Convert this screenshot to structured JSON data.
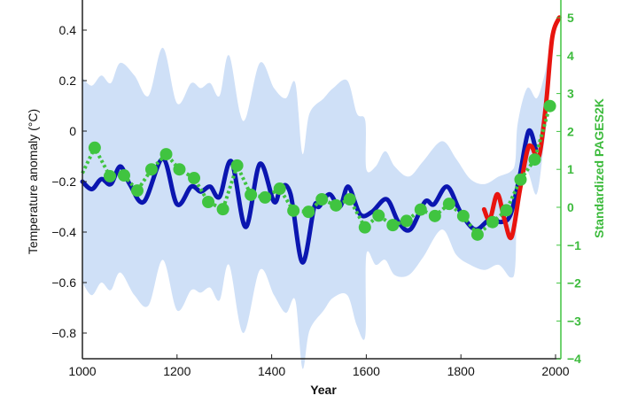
{
  "chart_data": {
    "type": "line",
    "xlabel": "Year",
    "ylabel": "Temperature anomaly (°C)",
    "y2label": "Standardized PAGES2K",
    "xlim": [
      990,
      2010
    ],
    "ylim": [
      -0.9,
      0.52
    ],
    "y2lim": [
      -4,
      5
    ],
    "xticks": [
      "1000",
      "1200",
      "1400",
      "1600",
      "1800",
      "2000"
    ],
    "yticks": [
      "0.4",
      "0.2",
      "0",
      "-0.2",
      "-0.4",
      "-0.6",
      "-0.8"
    ],
    "y2ticks": [
      "5",
      "4",
      "3",
      "2",
      "1",
      "0",
      "-1",
      "-2",
      "-3",
      "-4"
    ],
    "grid": false,
    "colors": {
      "band": "#cfe0f7",
      "blue": "#0b16b0",
      "red": "#e8140f",
      "green": "#40c440",
      "right_axis": "#40c440"
    },
    "series": [
      {
        "type": "band",
        "axis": "left",
        "color": "#cfe0f7",
        "x": [
          1000,
          1020,
          1040,
          1060,
          1080,
          1110,
          1140,
          1170,
          1200,
          1230,
          1250,
          1270,
          1290,
          1310,
          1340,
          1375,
          1405,
          1430,
          1450,
          1465,
          1480,
          1510,
          1530,
          1560,
          1580,
          1598,
          1600,
          1620,
          1640,
          1660,
          1690,
          1720,
          1760,
          1790,
          1820,
          1850,
          1880,
          1905,
          1915,
          1920,
          1940,
          1960,
          1975,
          1985
        ],
        "upper": [
          0.21,
          0.18,
          0.22,
          0.19,
          0.27,
          0.22,
          0.14,
          0.33,
          0.11,
          0.19,
          0.17,
          0.19,
          0.14,
          0.3,
          0.04,
          0.27,
          0.17,
          0.13,
          0.19,
          -0.09,
          0.07,
          0.13,
          0.17,
          0.2,
          0.07,
          0.04,
          -0.15,
          -0.14,
          -0.08,
          -0.14,
          -0.18,
          -0.12,
          -0.04,
          -0.11,
          -0.19,
          -0.21,
          -0.18,
          -0.16,
          -0.12,
          0.03,
          0.17,
          0.13,
          0.21,
          0.3
        ],
        "lower": [
          -0.6,
          -0.65,
          -0.6,
          -0.63,
          -0.56,
          -0.65,
          -0.69,
          -0.51,
          -0.71,
          -0.63,
          -0.64,
          -0.62,
          -0.67,
          -0.53,
          -0.8,
          -0.55,
          -0.65,
          -0.72,
          -0.67,
          -0.94,
          -0.79,
          -0.71,
          -0.66,
          -0.65,
          -0.77,
          -0.81,
          -0.49,
          -0.53,
          -0.51,
          -0.57,
          -0.57,
          -0.5,
          -0.39,
          -0.49,
          -0.53,
          -0.55,
          -0.53,
          -0.58,
          -0.53,
          -0.24,
          -0.16,
          -0.25,
          -0.06,
          0.1
        ]
      },
      {
        "type": "line",
        "axis": "left",
        "color": "#0b16b0",
        "x": [
          1000,
          1020,
          1040,
          1060,
          1080,
          1100,
          1130,
          1170,
          1200,
          1230,
          1250,
          1270,
          1290,
          1315,
          1345,
          1375,
          1405,
          1420,
          1440,
          1465,
          1490,
          1500,
          1522,
          1544,
          1562,
          1587,
          1612,
          1643,
          1668,
          1693,
          1724,
          1743,
          1771,
          1799,
          1830,
          1861,
          1886,
          1905,
          1924,
          1943,
          1958
        ],
        "y": [
          -0.2,
          -0.23,
          -0.19,
          -0.21,
          -0.14,
          -0.21,
          -0.28,
          -0.11,
          -0.29,
          -0.22,
          -0.24,
          -0.22,
          -0.26,
          -0.12,
          -0.38,
          -0.13,
          -0.28,
          -0.22,
          -0.25,
          -0.52,
          -0.3,
          -0.3,
          -0.25,
          -0.3,
          -0.22,
          -0.33,
          -0.32,
          -0.27,
          -0.36,
          -0.39,
          -0.28,
          -0.29,
          -0.22,
          -0.32,
          -0.39,
          -0.35,
          -0.36,
          -0.33,
          -0.18,
          0.0,
          -0.07
        ]
      },
      {
        "type": "line",
        "axis": "left",
        "color": "#e8140f",
        "x": [
          1849,
          1861,
          1877,
          1892,
          1907,
          1924,
          1940,
          1949,
          1965,
          1980,
          1993,
          2008
        ],
        "y": [
          -0.31,
          -0.35,
          -0.25,
          -0.35,
          -0.42,
          -0.24,
          -0.08,
          -0.06,
          -0.1,
          0.11,
          0.37,
          0.45
        ]
      },
      {
        "type": "dotted-line-markers",
        "axis": "right",
        "color": "#40c440",
        "x": [
          1000,
          1026,
          1058,
          1088,
          1116,
          1146,
          1177,
          1205,
          1236,
          1266,
          1297,
          1327,
          1356,
          1386,
          1417,
          1446,
          1478,
          1506,
          1536,
          1565,
          1597,
          1626,
          1656,
          1685,
          1715,
          1745,
          1775,
          1805,
          1835,
          1867,
          1896,
          1926,
          1956,
          1988
        ],
        "y": [
          0.9,
          1.57,
          0.82,
          0.84,
          0.44,
          1.0,
          1.4,
          1.0,
          0.77,
          0.14,
          -0.05,
          1.1,
          0.33,
          0.26,
          0.49,
          -0.09,
          -0.12,
          0.21,
          0.05,
          0.21,
          -0.53,
          -0.22,
          -0.47,
          -0.36,
          -0.06,
          -0.23,
          0.09,
          -0.23,
          -0.72,
          -0.39,
          -0.08,
          0.73,
          1.26,
          2.67
        ]
      }
    ]
  }
}
